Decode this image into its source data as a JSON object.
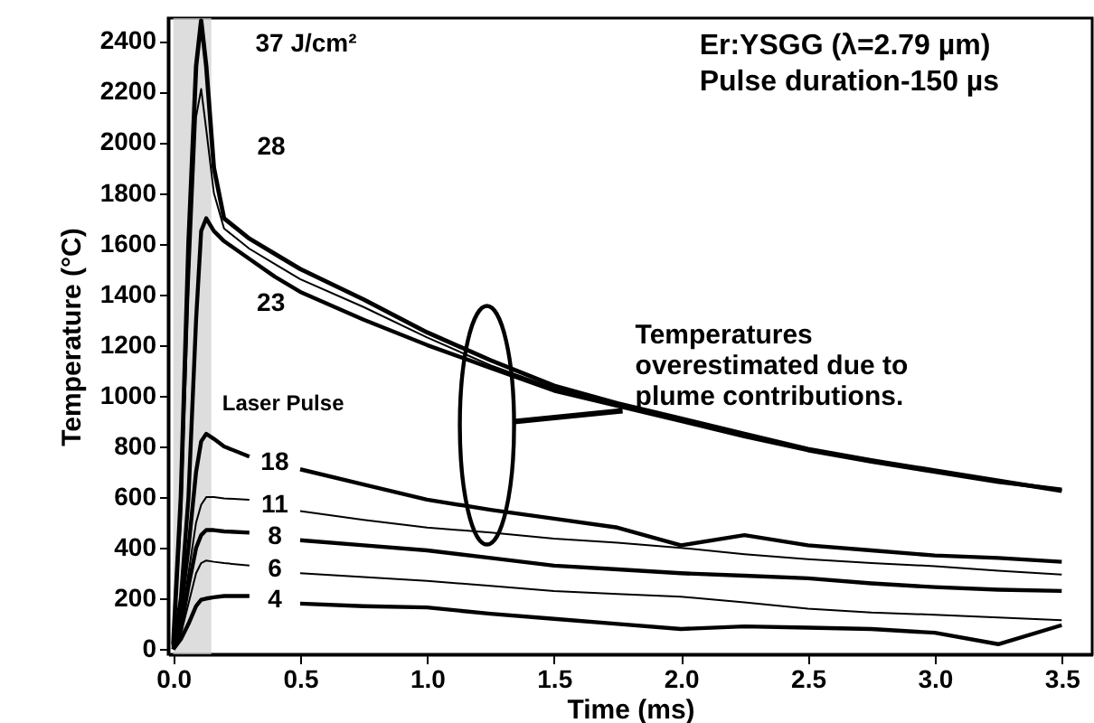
{
  "chart_data": {
    "type": "line",
    "title": "Er:YSGG (λ=2.79 µm)",
    "subtitle": "Pulse duration-150 µs",
    "xlabel": "Time (ms)",
    "ylabel": "Temperature (°C)",
    "x": [
      0,
      0.03,
      0.06,
      0.09,
      0.11,
      0.13,
      0.16,
      0.2,
      0.3,
      0.4,
      0.5,
      0.75,
      1.0,
      1.25,
      1.5,
      1.75,
      2.0,
      2.25,
      2.5,
      2.75,
      3.0,
      3.25,
      3.5
    ],
    "series": [
      {
        "name": "37 J/cm²",
        "color": "#000000",
        "values": [
          20,
          600,
          1600,
          2300,
          2480,
          2300,
          1900,
          1700,
          1620,
          1560,
          1500,
          1380,
          1250,
          1140,
          1040,
          970,
          910,
          850,
          790,
          745,
          705,
          665,
          625
        ]
      },
      {
        "name": "28",
        "color": "#000000",
        "values": [
          20,
          500,
          1400,
          2100,
          2210,
          2050,
          1800,
          1660,
          1580,
          1520,
          1460,
          1350,
          1230,
          1120,
          1030,
          965,
          905,
          845,
          785,
          745,
          700,
          660,
          625
        ]
      },
      {
        "name": "23",
        "color": "#000000",
        "values": [
          10,
          200,
          600,
          1300,
          1650,
          1700,
          1650,
          1610,
          1540,
          1470,
          1410,
          1300,
          1200,
          1110,
          1020,
          960,
          900,
          840,
          785,
          740,
          700,
          660,
          630
        ]
      },
      {
        "name": "18",
        "color": "#000000",
        "values": [
          0,
          150,
          400,
          700,
          820,
          850,
          830,
          800,
          760,
          null,
          710,
          650,
          590,
          550,
          515,
          480,
          410,
          450,
          410,
          390,
          370,
          360,
          345
        ]
      },
      {
        "name": "11",
        "color": "#000000",
        "values": [
          0,
          100,
          300,
          500,
          570,
          600,
          600,
          595,
          590,
          null,
          545,
          510,
          480,
          460,
          436,
          420,
          400,
          375,
          355,
          340,
          328,
          310,
          295
        ]
      },
      {
        "name": "8",
        "color": "#000000",
        "values": [
          0,
          80,
          250,
          400,
          450,
          470,
          470,
          465,
          460,
          null,
          430,
          410,
          390,
          360,
          330,
          315,
          300,
          290,
          280,
          260,
          245,
          235,
          230
        ]
      },
      {
        "name": "6",
        "color": "#000000",
        "values": [
          0,
          60,
          180,
          300,
          340,
          350,
          345,
          340,
          330,
          null,
          300,
          285,
          270,
          250,
          230,
          218,
          207,
          185,
          160,
          145,
          136,
          125,
          115
        ]
      },
      {
        "name": "4",
        "color": "#000000",
        "values": [
          0,
          40,
          100,
          170,
          195,
          200,
          205,
          210,
          210,
          null,
          180,
          170,
          165,
          140,
          120,
          100,
          80,
          90,
          85,
          80,
          65,
          20,
          95
        ]
      }
    ],
    "xlim": [
      -0.02,
      3.62
    ],
    "xticks": [
      {
        "value": 0,
        "label": "0.0"
      },
      0.5,
      {
        "value": 1,
        "label": "1.0"
      },
      1.5,
      {
        "value": 2,
        "label": "2.0"
      },
      2.5,
      {
        "value": 3,
        "label": "3.0"
      },
      3.5
    ],
    "ylim": [
      -20,
      2490
    ],
    "yticks": [
      0,
      200,
      400,
      600,
      800,
      1000,
      1200,
      1400,
      1600,
      1800,
      2000,
      2200,
      2400
    ],
    "bands": [
      {
        "axis": "x",
        "from": 0,
        "to": 0.15,
        "label": "Laser Pulse",
        "color": "#cfcfcf"
      }
    ],
    "annotations": [
      "Temperatures overestimated due to plume contributions."
    ],
    "grid": false,
    "marker": "none",
    "line_style": "solid"
  }
}
